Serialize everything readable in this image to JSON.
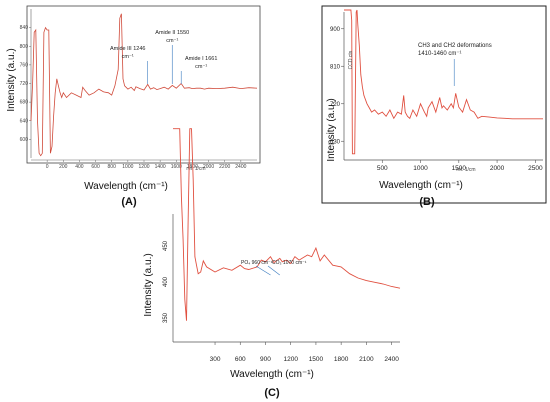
{
  "chart_data": [
    {
      "panel": "(A)",
      "type": "line",
      "xlabel": "Wavelength (cm⁻¹)",
      "ylabel": "Intensity (a.u.)",
      "xlim": [
        -200,
        2600
      ],
      "x_ticks": [
        "0",
        "200",
        "400",
        "600",
        "800",
        "1000",
        "1200",
        "1400",
        "1600",
        "1800",
        "2000",
        "2200",
        "2400"
      ],
      "y_ticks": [
        "600",
        "640",
        "680",
        "720",
        "760",
        "800",
        "840"
      ],
      "xaxis_small": "rel. 1/cm",
      "annotations": [
        {
          "text": "Amide III 1246",
          "text2": "cm⁻¹",
          "x": 1246
        },
        {
          "text": "Amide II  1550",
          "text2": "cm⁻¹",
          "x": 1550
        },
        {
          "text": "Amide I  1661",
          "text2": "cm⁻¹",
          "x": 1661
        }
      ],
      "series": [
        {
          "color": "#d04a3a",
          "x": [
            -200,
            -180,
            -160,
            -140,
            -120,
            -100,
            -80,
            -60,
            -40,
            -20,
            0,
            20,
            40,
            60,
            80,
            100,
            120,
            140,
            160,
            180,
            200,
            240,
            300,
            360,
            420,
            440,
            470,
            520,
            580,
            640,
            700,
            760,
            800,
            840,
            880,
            900,
            920,
            940,
            960,
            1000,
            1040,
            1080,
            1100,
            1150,
            1200,
            1246,
            1280,
            1320,
            1360,
            1400,
            1450,
            1500,
            1550,
            1600,
            1661,
            1700,
            1760,
            1800,
            1850,
            1900,
            1950,
            2000,
            2100,
            2200,
            2300,
            2400,
            2500,
            2600
          ],
          "y": [
            640,
            720,
            830,
            835,
            640,
            570,
            565,
            570,
            830,
            840,
            835,
            835,
            570,
            585,
            650,
            700,
            730,
            715,
            700,
            690,
            700,
            690,
            700,
            695,
            690,
            712,
            705,
            695,
            700,
            708,
            702,
            700,
            695,
            715,
            750,
            860,
            870,
            730,
            715,
            708,
            712,
            705,
            713,
            709,
            706,
            718,
            708,
            711,
            707,
            709,
            712,
            708,
            716,
            710,
            720,
            710,
            711,
            709,
            710,
            710,
            708,
            710,
            709,
            710,
            712,
            709,
            711,
            710
          ]
        }
      ]
    },
    {
      "panel": "(B)",
      "type": "line",
      "xlabel": "Wavelength (cm⁻¹)",
      "ylabel": "Intensity (a.u.)",
      "xlim": [
        0,
        2600
      ],
      "ylim": [
        585,
        945
      ],
      "x_ticks": [
        500,
        1000,
        1500,
        2000,
        2500
      ],
      "y_ticks": [
        630,
        720,
        810,
        900
      ],
      "y_cts_label": "CCD cts",
      "xaxis_small": "rel. 1/cm",
      "annotations": [
        {
          "text": "CH3 and CH2 deformations",
          "text2": "1410-1460 cm⁻¹",
          "x": 1440
        }
      ],
      "series": [
        {
          "color": "#e05040",
          "x": [
            0,
            50,
            90,
            100,
            110,
            120,
            140,
            160,
            170,
            180,
            200,
            220,
            240,
            260,
            300,
            330,
            360,
            400,
            450,
            500,
            550,
            600,
            650,
            700,
            750,
            780,
            800,
            830,
            860,
            900,
            950,
            1000,
            1050,
            1080,
            1100,
            1150,
            1200,
            1250,
            1280,
            1300,
            1350,
            1400,
            1430,
            1460,
            1500,
            1550,
            1600,
            1650,
            1700,
            1750,
            1800,
            1900,
            2000,
            2100,
            2200,
            2300,
            2400,
            2500,
            2600
          ],
          "y": [
            945,
            945,
            945,
            920,
            600,
            600,
            600,
            940,
            945,
            910,
            860,
            790,
            760,
            740,
            720,
            710,
            700,
            705,
            695,
            700,
            690,
            705,
            685,
            700,
            695,
            740,
            700,
            690,
            685,
            705,
            690,
            720,
            700,
            690,
            710,
            725,
            700,
            735,
            710,
            715,
            705,
            720,
            710,
            745,
            712,
            700,
            730,
            705,
            700,
            685,
            690,
            688,
            686,
            685,
            684,
            684,
            684,
            684,
            684
          ]
        }
      ]
    },
    {
      "panel": "(C)",
      "type": "line",
      "xlabel": "Wavelength (cm⁻¹)",
      "ylabel": "Intensity (a.u.)",
      "xlim": [
        -200,
        2500
      ],
      "x_ticks": [
        300,
        600,
        900,
        1200,
        1500,
        1800,
        2100,
        2400
      ],
      "y_ticks": [
        "450",
        "400",
        "350"
      ],
      "annotations": [
        {
          "text": "PO₄ 960 cm⁻¹",
          "x": 960
        },
        {
          "text": "CO₃ 1070 cm⁻¹",
          "x": 1070
        }
      ],
      "series": [
        {
          "color": "#e05040",
          "x": [
            -200,
            -180,
            -150,
            -120,
            -100,
            -80,
            -60,
            -40,
            -20,
            0,
            20,
            40,
            60,
            80,
            100,
            130,
            160,
            200,
            300,
            400,
            500,
            600,
            650,
            700,
            800,
            850,
            900,
            960,
            1000,
            1070,
            1100,
            1150,
            1200,
            1250,
            1300,
            1400,
            1450,
            1500,
            1550,
            1600,
            1700,
            1800,
            1900,
            2000,
            2100,
            2200,
            2300,
            2400,
            2500
          ],
          "y": [
            580,
            580,
            580,
            580,
            500,
            450,
            380,
            355,
            470,
            580,
            580,
            520,
            430,
            420,
            410,
            412,
            425,
            418,
            412,
            417,
            414,
            420,
            416,
            415,
            418,
            426,
            424,
            430,
            423,
            428,
            424,
            426,
            422,
            430,
            426,
            432,
            430,
            440,
            425,
            432,
            420,
            418,
            410,
            405,
            402,
            400,
            398,
            395,
            393
          ]
        }
      ]
    }
  ]
}
